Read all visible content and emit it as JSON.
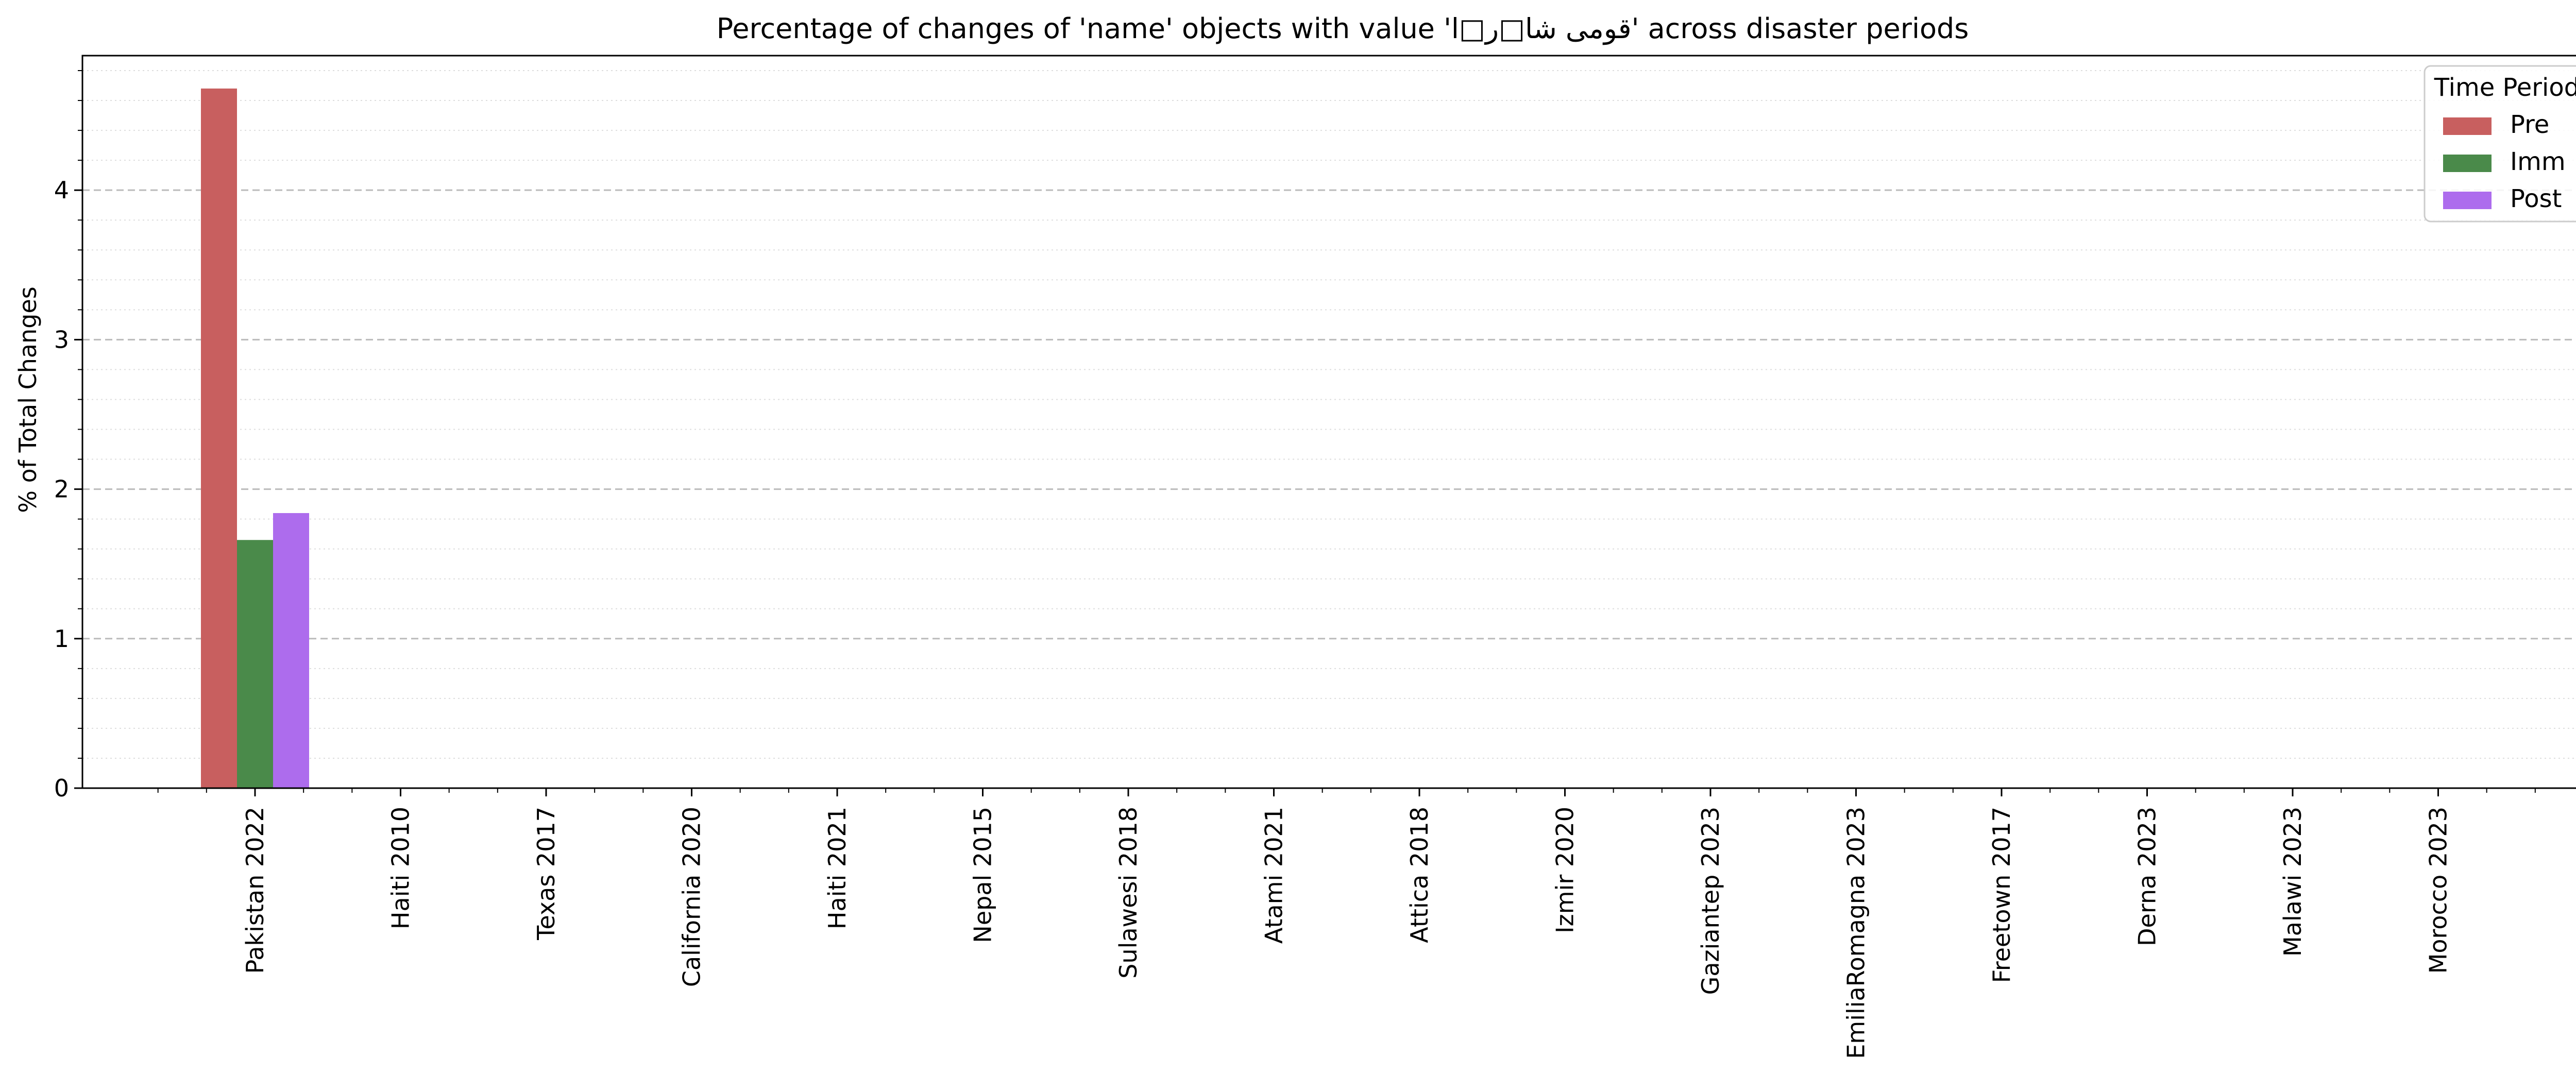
{
  "chart_data": {
    "type": "bar",
    "title": "Percentage of changes of 'name' objects with value 'قومی شا□ر□ا' across disaster periods",
    "xlabel": "",
    "ylabel": "% of Total Changes",
    "ylim": [
      0,
      4.9
    ],
    "yticks": [
      0,
      1,
      2,
      3,
      4
    ],
    "grid": true,
    "legend_title": "Time Period",
    "legend_position": "top-right",
    "categories": [
      "Pakistan 2022",
      "Haiti 2010",
      "Texas 2017",
      "California 2020",
      "Haiti 2021",
      "Nepal 2015",
      "Sulawesi 2018",
      "Atami 2021",
      "Attica 2018",
      "Izmir 2020",
      "Gaziantep 2023",
      "EmiliaRomagna 2023",
      "Freetown 2017",
      "Derna 2023",
      "Malawi 2023",
      "Morocco 2023"
    ],
    "series": [
      {
        "name": "Pre",
        "color": "#c85f5f",
        "values": [
          4.68,
          0,
          0,
          0,
          0,
          0,
          0,
          0,
          0,
          0,
          0,
          0,
          0,
          0,
          0,
          0
        ]
      },
      {
        "name": "Imm",
        "color": "#4a8a4a",
        "values": [
          1.66,
          0,
          0,
          0,
          0,
          0,
          0,
          0,
          0,
          0,
          0,
          0,
          0,
          0,
          0,
          0
        ]
      },
      {
        "name": "Post",
        "color": "#ad6ced",
        "values": [
          1.84,
          0,
          0,
          0,
          0,
          0,
          0,
          0,
          0,
          0,
          0,
          0,
          0,
          0,
          0,
          0
        ]
      }
    ]
  }
}
